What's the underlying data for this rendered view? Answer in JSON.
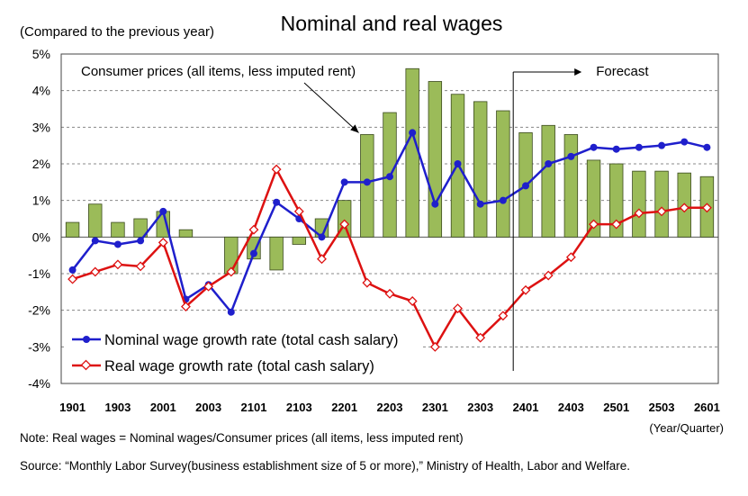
{
  "chart_data": {
    "type": "bar+line",
    "title": "Nominal and real wages",
    "y_axis_caption": "(Compared to the previous year)",
    "x_axis_caption": "(Year/Quarter)",
    "ylim": [
      -4,
      5
    ],
    "y_ticks": [
      5,
      4,
      3,
      2,
      1,
      0,
      -1,
      -2,
      -3,
      -4
    ],
    "y_tick_labels": [
      "5%",
      "4%",
      "3%",
      "2%",
      "1%",
      "0%",
      "-1%",
      "-2%",
      "-3%",
      "-4%"
    ],
    "grid": "horizontal, dashed",
    "legend_position": "bottom-left",
    "categories": [
      "1901",
      "1902",
      "1903",
      "1904",
      "2001",
      "2002",
      "2003",
      "2004",
      "2101",
      "2102",
      "2103",
      "2104",
      "2201",
      "2202",
      "2203",
      "2204",
      "2301",
      "2302",
      "2303",
      "2304",
      "2401",
      "2402",
      "2403",
      "2404",
      "2501",
      "2502",
      "2503",
      "2504",
      "2601"
    ],
    "x_tick_labels": [
      "1901",
      "1903",
      "2001",
      "2003",
      "2101",
      "2103",
      "2201",
      "2203",
      "2301",
      "2303",
      "2401",
      "2403",
      "2501",
      "2503",
      "2601"
    ],
    "bar_series": {
      "name": "Consumer prices (all items, less imputed rent)",
      "color": "#9bbb59",
      "values": [
        0.4,
        0.9,
        0.4,
        0.5,
        0.7,
        0.2,
        0,
        -1.0,
        -0.6,
        -0.9,
        -0.2,
        0.5,
        1.0,
        2.8,
        3.4,
        4.6,
        4.25,
        3.9,
        3.7,
        3.45,
        2.85,
        3.05,
        2.8,
        2.1,
        2.0,
        1.8,
        1.8,
        1.75,
        1.65
      ]
    },
    "series": [
      {
        "name": "Nominal wage growth rate (total cash salary)",
        "color": "#1f1fcc",
        "values": [
          -0.9,
          -0.1,
          -0.2,
          -0.1,
          0.7,
          -1.7,
          -1.3,
          -2.05,
          -0.45,
          0.95,
          0.5,
          0.0,
          1.5,
          1.5,
          1.65,
          2.85,
          0.9,
          2.0,
          0.9,
          1.0,
          1.4,
          2.0,
          2.2,
          2.45,
          2.4,
          2.45,
          2.5,
          2.6,
          2.45
        ]
      },
      {
        "name": "Real wage growth rate (total cash salary)",
        "color": "#dd1111",
        "values": [
          -1.15,
          -0.95,
          -0.75,
          -0.8,
          -0.15,
          -1.9,
          -1.35,
          -0.95,
          0.2,
          1.85,
          0.7,
          -0.6,
          0.35,
          -1.25,
          -1.55,
          -1.75,
          -3.0,
          -1.95,
          -2.75,
          -2.15,
          -1.45,
          -1.05,
          -0.55,
          0.35,
          0.35,
          0.65,
          0.7,
          0.8,
          0.8
        ]
      }
    ],
    "annotations": {
      "cpi_label": "Consumer prices (all items, less imputed rent)",
      "forecast_label": "Forecast",
      "forecast_start_category": "2401"
    }
  },
  "notes": {
    "note": "Note: Real wages = Nominal wages/Consumer prices (all items, less imputed rent)",
    "source": "Source: “Monthly Labor Survey(business establishment size of 5 or more),” Ministry of Health, Labor and Welfare."
  }
}
